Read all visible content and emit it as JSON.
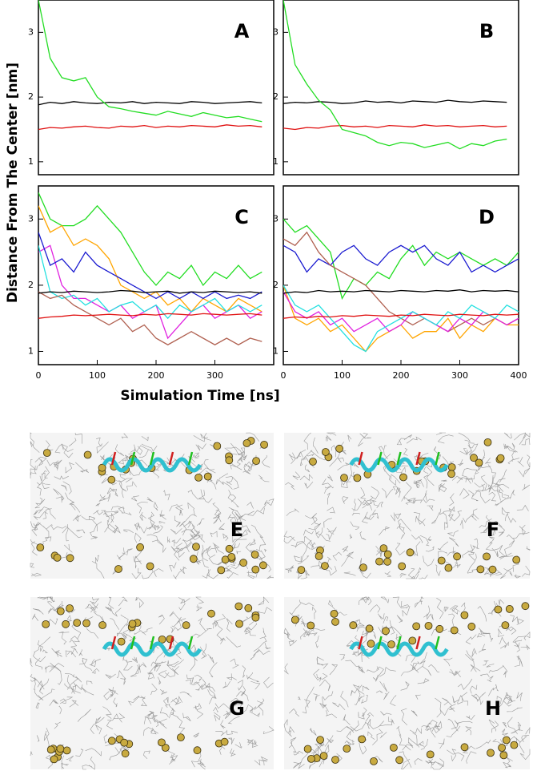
{
  "chart_data": [
    {
      "type": "line",
      "title": "A",
      "x": [
        0,
        20,
        40,
        60,
        80,
        100,
        120,
        140,
        160,
        180,
        200,
        220,
        240,
        260,
        280,
        300,
        320,
        340,
        360,
        380
      ],
      "xlim": [
        0,
        400
      ],
      "ylim": [
        0.8,
        3.5
      ],
      "yticks": [
        1,
        2,
        3
      ],
      "series": [
        {
          "color": "#000000",
          "values": [
            1.88,
            1.92,
            1.9,
            1.93,
            1.91,
            1.9,
            1.92,
            1.91,
            1.93,
            1.9,
            1.92,
            1.91,
            1.9,
            1.93,
            1.92,
            1.9,
            1.91,
            1.92,
            1.93,
            1.91
          ]
        },
        {
          "color": "#e01010",
          "values": [
            1.5,
            1.53,
            1.52,
            1.54,
            1.55,
            1.53,
            1.52,
            1.55,
            1.54,
            1.56,
            1.53,
            1.55,
            1.54,
            1.56,
            1.55,
            1.54,
            1.57,
            1.55,
            1.56,
            1.54
          ]
        },
        {
          "color": "#22dd22",
          "values": [
            3.5,
            2.6,
            2.3,
            2.25,
            2.3,
            2.0,
            1.85,
            1.82,
            1.78,
            1.75,
            1.72,
            1.78,
            1.74,
            1.7,
            1.76,
            1.72,
            1.68,
            1.7,
            1.66,
            1.62
          ]
        }
      ]
    },
    {
      "type": "line",
      "title": "B",
      "x": [
        0,
        20,
        40,
        60,
        80,
        100,
        120,
        140,
        160,
        180,
        200,
        220,
        240,
        260,
        280,
        300,
        320,
        340,
        360,
        380
      ],
      "xlim": [
        0,
        400
      ],
      "ylim": [
        0.8,
        3.5
      ],
      "yticks": [
        1,
        2,
        3
      ],
      "series": [
        {
          "color": "#000000",
          "values": [
            1.9,
            1.92,
            1.91,
            1.93,
            1.92,
            1.9,
            1.91,
            1.94,
            1.92,
            1.93,
            1.91,
            1.94,
            1.93,
            1.92,
            1.95,
            1.93,
            1.92,
            1.94,
            1.93,
            1.92
          ]
        },
        {
          "color": "#e01010",
          "values": [
            1.52,
            1.5,
            1.53,
            1.52,
            1.55,
            1.56,
            1.54,
            1.55,
            1.53,
            1.56,
            1.55,
            1.54,
            1.57,
            1.55,
            1.56,
            1.54,
            1.55,
            1.56,
            1.54,
            1.55
          ]
        },
        {
          "color": "#22dd22",
          "values": [
            3.5,
            2.5,
            2.2,
            1.95,
            1.8,
            1.5,
            1.45,
            1.4,
            1.3,
            1.25,
            1.3,
            1.28,
            1.22,
            1.26,
            1.3,
            1.2,
            1.28,
            1.25,
            1.32,
            1.35
          ]
        }
      ]
    },
    {
      "type": "line",
      "title": "C",
      "x": [
        0,
        20,
        40,
        60,
        80,
        100,
        120,
        140,
        160,
        180,
        200,
        220,
        240,
        260,
        280,
        300,
        320,
        340,
        360,
        380
      ],
      "xlim": [
        0,
        400
      ],
      "ylim": [
        0.8,
        3.5
      ],
      "yticks": [
        1,
        2,
        3
      ],
      "xticks": [
        0,
        100,
        200,
        300
      ],
      "series": [
        {
          "color": "#22dd22",
          "values": [
            3.4,
            3.0,
            2.9,
            2.9,
            3.0,
            3.2,
            3.0,
            2.8,
            2.5,
            2.2,
            2.0,
            2.2,
            2.1,
            2.3,
            2.0,
            2.2,
            2.1,
            2.3,
            2.1,
            2.2
          ]
        },
        {
          "color": "#ffa500",
          "values": [
            3.2,
            2.8,
            2.9,
            2.6,
            2.7,
            2.6,
            2.4,
            2.0,
            1.9,
            1.8,
            1.9,
            1.7,
            1.8,
            1.6,
            1.8,
            1.7,
            1.6,
            1.8,
            1.7,
            1.6
          ]
        },
        {
          "color": "#e020e0",
          "values": [
            2.5,
            2.6,
            2.0,
            1.8,
            1.8,
            1.7,
            1.6,
            1.7,
            1.5,
            1.6,
            1.7,
            1.2,
            1.4,
            1.6,
            1.7,
            1.5,
            1.6,
            1.7,
            1.5,
            1.6
          ]
        },
        {
          "color": "#1a1ad0",
          "values": [
            2.8,
            2.3,
            2.4,
            2.2,
            2.5,
            2.3,
            2.2,
            2.1,
            2.0,
            1.9,
            1.8,
            1.9,
            1.8,
            1.9,
            1.8,
            1.9,
            1.8,
            1.85,
            1.8,
            1.9
          ]
        },
        {
          "color": "#22e0e0",
          "values": [
            2.6,
            1.9,
            1.8,
            1.85,
            1.7,
            1.8,
            1.6,
            1.7,
            1.75,
            1.6,
            1.7,
            1.5,
            1.7,
            1.6,
            1.7,
            1.8,
            1.6,
            1.7,
            1.6,
            1.7
          ]
        },
        {
          "color": "#b06050",
          "values": [
            1.9,
            1.8,
            1.85,
            1.7,
            1.6,
            1.5,
            1.4,
            1.5,
            1.3,
            1.4,
            1.2,
            1.1,
            1.2,
            1.3,
            1.2,
            1.1,
            1.2,
            1.1,
            1.2,
            1.15
          ]
        },
        {
          "color": "#000000",
          "values": [
            1.88,
            1.9,
            1.89,
            1.91,
            1.9,
            1.89,
            1.9,
            1.92,
            1.91,
            1.89,
            1.9,
            1.91,
            1.88,
            1.9,
            1.89,
            1.91,
            1.9,
            1.89,
            1.9,
            1.88
          ]
        },
        {
          "color": "#e01010",
          "values": [
            1.5,
            1.52,
            1.53,
            1.55,
            1.54,
            1.55,
            1.56,
            1.55,
            1.54,
            1.56,
            1.55,
            1.57,
            1.56,
            1.55,
            1.57,
            1.56,
            1.55,
            1.56,
            1.57,
            1.55
          ]
        }
      ]
    },
    {
      "type": "line",
      "title": "D",
      "x": [
        0,
        20,
        40,
        60,
        80,
        100,
        120,
        140,
        160,
        180,
        200,
        220,
        240,
        260,
        280,
        300,
        320,
        340,
        360,
        380,
        400
      ],
      "xlim": [
        0,
        400
      ],
      "ylim": [
        0.8,
        3.5
      ],
      "yticks": [
        1,
        2,
        3
      ],
      "xticks": [
        0,
        100,
        200,
        300,
        400
      ],
      "series": [
        {
          "color": "#22dd22",
          "values": [
            3.0,
            2.8,
            2.9,
            2.7,
            2.5,
            1.8,
            2.1,
            2.0,
            2.2,
            2.1,
            2.4,
            2.6,
            2.3,
            2.5,
            2.4,
            2.5,
            2.4,
            2.3,
            2.4,
            2.3,
            2.5
          ]
        },
        {
          "color": "#1a1ad0",
          "values": [
            2.6,
            2.5,
            2.2,
            2.4,
            2.3,
            2.5,
            2.6,
            2.4,
            2.3,
            2.5,
            2.6,
            2.5,
            2.6,
            2.4,
            2.3,
            2.5,
            2.2,
            2.3,
            2.2,
            2.3,
            2.4
          ]
        },
        {
          "color": "#b06050",
          "values": [
            2.7,
            2.6,
            2.8,
            2.5,
            2.3,
            2.2,
            2.1,
            2.0,
            1.8,
            1.6,
            1.5,
            1.4,
            1.5,
            1.4,
            1.3,
            1.4,
            1.5,
            1.4,
            1.5,
            1.4,
            1.5
          ]
        },
        {
          "color": "#ffa500",
          "values": [
            2.0,
            1.5,
            1.4,
            1.5,
            1.3,
            1.4,
            1.2,
            1.0,
            1.2,
            1.3,
            1.4,
            1.2,
            1.3,
            1.3,
            1.5,
            1.2,
            1.4,
            1.3,
            1.5,
            1.4,
            1.4
          ]
        },
        {
          "color": "#e020e0",
          "values": [
            1.9,
            1.6,
            1.5,
            1.6,
            1.4,
            1.5,
            1.3,
            1.4,
            1.5,
            1.3,
            1.4,
            1.6,
            1.5,
            1.4,
            1.3,
            1.5,
            1.4,
            1.6,
            1.5,
            1.4,
            1.5
          ]
        },
        {
          "color": "#22e0e0",
          "values": [
            2.0,
            1.7,
            1.6,
            1.7,
            1.5,
            1.3,
            1.1,
            1.0,
            1.3,
            1.4,
            1.5,
            1.6,
            1.5,
            1.4,
            1.6,
            1.5,
            1.7,
            1.6,
            1.5,
            1.7,
            1.6
          ]
        },
        {
          "color": "#000000",
          "values": [
            1.88,
            1.9,
            1.89,
            1.92,
            1.9,
            1.91,
            1.9,
            1.92,
            1.91,
            1.9,
            1.92,
            1.91,
            1.9,
            1.92,
            1.91,
            1.93,
            1.9,
            1.92,
            1.91,
            1.92,
            1.9
          ]
        },
        {
          "color": "#e01010",
          "values": [
            1.5,
            1.52,
            1.51,
            1.53,
            1.52,
            1.54,
            1.53,
            1.55,
            1.54,
            1.53,
            1.55,
            1.54,
            1.56,
            1.55,
            1.54,
            1.56,
            1.55,
            1.54,
            1.56,
            1.55,
            1.56
          ]
        }
      ]
    }
  ],
  "axis_labels": {
    "y": "Distance From The Center [nm]",
    "x": "Simulation Time [ns]"
  },
  "snapshots": [
    {
      "label": "E"
    },
    {
      "label": "F"
    },
    {
      "label": "G"
    },
    {
      "label": "H"
    }
  ]
}
